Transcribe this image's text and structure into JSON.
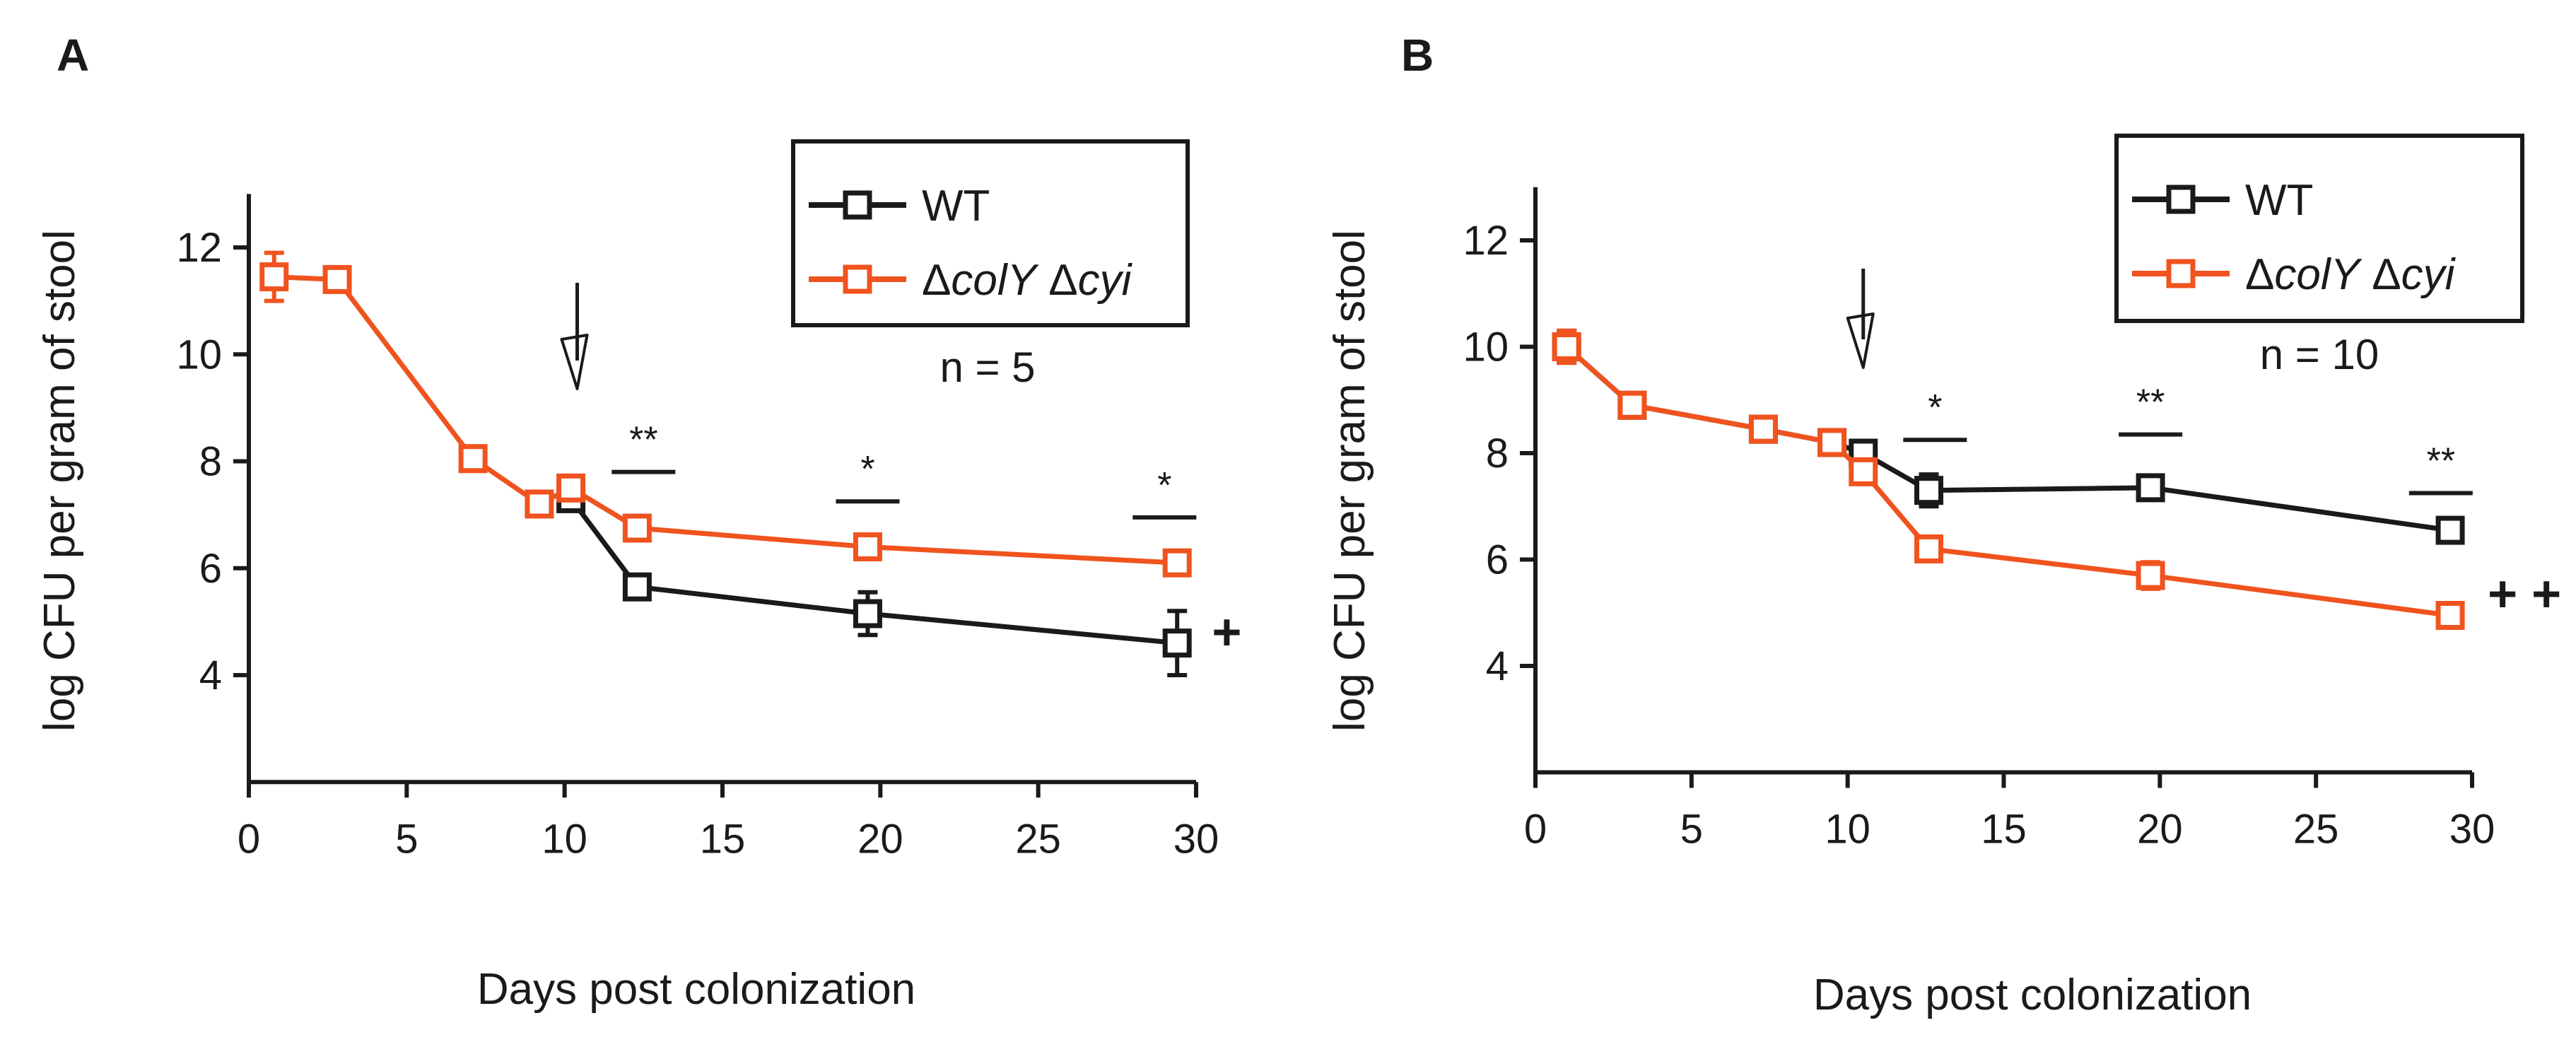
{
  "figure": {
    "panels": [
      "A",
      "B"
    ]
  },
  "colors": {
    "wt": "#1a1a1a",
    "mutant": "#f0531e",
    "axis": "#1a1a1a"
  },
  "chart_data": [
    {
      "type": "line",
      "panel_label": "A",
      "xlabel": "Days post colonization",
      "ylabel": "log CFU per gram of stool",
      "xlim": [
        0,
        30
      ],
      "ylim": [
        2,
        13
      ],
      "xticks": [
        0,
        5,
        10,
        15,
        20,
        25,
        30
      ],
      "yticks": [
        4,
        6,
        8,
        10,
        12
      ],
      "legend": {
        "position": "top-right",
        "entries": [
          "WT",
          "ΔcolY Δcyi"
        ]
      },
      "n_label": "n = 5",
      "series": [
        {
          "name": "WT",
          "key": "wt",
          "x": [
            10.2,
            12.3,
            19.6,
            29.4
          ],
          "y": [
            7.3,
            5.65,
            5.15,
            4.6
          ],
          "err": [
            0.1,
            0.1,
            0.4,
            0.6
          ]
        },
        {
          "name": "ΔcolY Δcyi",
          "key": "mutant",
          "x": [
            0.8,
            2.8,
            7.1,
            9.2,
            10.2,
            12.3,
            19.6,
            29.4
          ],
          "y": [
            11.45,
            11.4,
            8.05,
            7.2,
            7.5,
            6.75,
            6.4,
            6.1
          ],
          "err": [
            0.45,
            0.1,
            0.1,
            0.1,
            0.15,
            0.1,
            0.1,
            0.1
          ]
        }
      ],
      "arrow_x": 10.4,
      "significance": [
        {
          "x": 12.5,
          "label": "**",
          "y": 7.8
        },
        {
          "x": 19.6,
          "label": "*",
          "y": 7.25
        },
        {
          "x": 29.0,
          "label": "*",
          "y": 6.95
        }
      ],
      "plus_annotations": [
        {
          "x": 30.5,
          "y": 4.8,
          "label": "+"
        }
      ]
    },
    {
      "type": "line",
      "panel_label": "B",
      "xlabel": "Days post colonization",
      "ylabel": "log CFU per gram of stool",
      "xlim": [
        0,
        30
      ],
      "ylim": [
        2,
        13
      ],
      "xticks": [
        0,
        5,
        10,
        15,
        20,
        25,
        30
      ],
      "yticks": [
        4,
        6,
        8,
        10,
        12
      ],
      "legend": {
        "position": "top-right",
        "entries": [
          "WT",
          "ΔcolY Δcyi"
        ]
      },
      "n_label": "n = 10",
      "series": [
        {
          "name": "WT",
          "key": "wt",
          "x": [
            1.0,
            3.1,
            7.3,
            9.5,
            10.5,
            12.6,
            19.7,
            29.3
          ],
          "y": [
            10.0,
            8.9,
            8.45,
            8.2,
            8.0,
            7.3,
            7.35,
            6.55
          ],
          "err": [
            0.3,
            0.15,
            0.1,
            0.1,
            0.15,
            0.3,
            0.1,
            0.1
          ]
        },
        {
          "name": "ΔcolY Δcyi",
          "key": "mutant",
          "x": [
            1.0,
            3.1,
            7.3,
            9.5,
            10.5,
            12.6,
            19.7,
            29.3
          ],
          "y": [
            10.0,
            8.9,
            8.45,
            8.2,
            7.65,
            6.2,
            5.7,
            4.95
          ],
          "err": [
            0.3,
            0.15,
            0.1,
            0.1,
            0.1,
            0.1,
            0.25,
            0.1
          ]
        }
      ],
      "arrow_x": 10.5,
      "significance": [
        {
          "x": 12.8,
          "label": "*",
          "y": 8.25
        },
        {
          "x": 19.7,
          "label": "**",
          "y": 8.35
        },
        {
          "x": 29.0,
          "label": "**",
          "y": 7.25
        }
      ],
      "plus_annotations": [
        {
          "x": 30.5,
          "y": 5.35,
          "label": "+ +"
        }
      ]
    }
  ]
}
